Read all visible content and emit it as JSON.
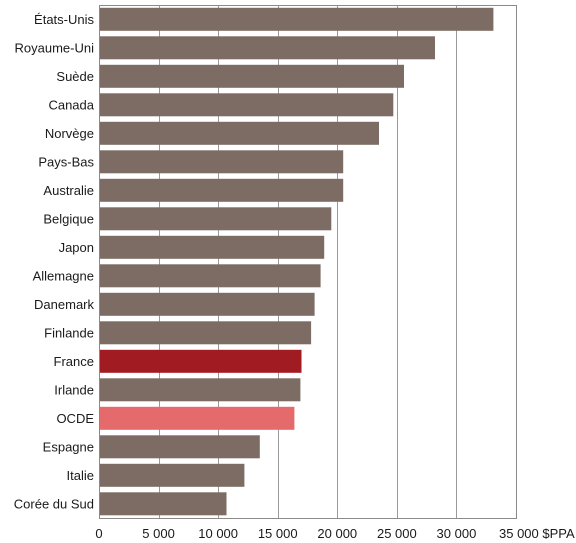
{
  "chart_data": {
    "type": "bar",
    "orientation": "horizontal",
    "categories": [
      "États-Unis",
      "Royaume-Uni",
      "Suède",
      "Canada",
      "Norvège",
      "Pays-Bas",
      "Australie",
      "Belgique",
      "Japon",
      "Allemagne",
      "Danemark",
      "Finlande",
      "France",
      "Irlande",
      "OCDE",
      "Espagne",
      "Italie",
      "Corée du Sud"
    ],
    "values": [
      33100,
      28200,
      25600,
      24700,
      23500,
      20500,
      20500,
      19500,
      18900,
      18600,
      18100,
      17800,
      17000,
      16900,
      16400,
      13500,
      12200,
      10700
    ],
    "highlight": {
      "France": "#a01b22",
      "OCDE": "#e46a6b"
    },
    "bar_color": "#7c6c63",
    "xlim": [
      0,
      35000
    ],
    "xticks": [
      0,
      5000,
      10000,
      15000,
      20000,
      25000,
      30000,
      35000
    ],
    "xtick_labels": [
      "0",
      "5 000",
      "10 000",
      "15 000",
      "20 000",
      "25 000",
      "30 000",
      "35 000 $PPA"
    ],
    "grid": true,
    "title": "",
    "xlabel": "",
    "ylabel": ""
  }
}
